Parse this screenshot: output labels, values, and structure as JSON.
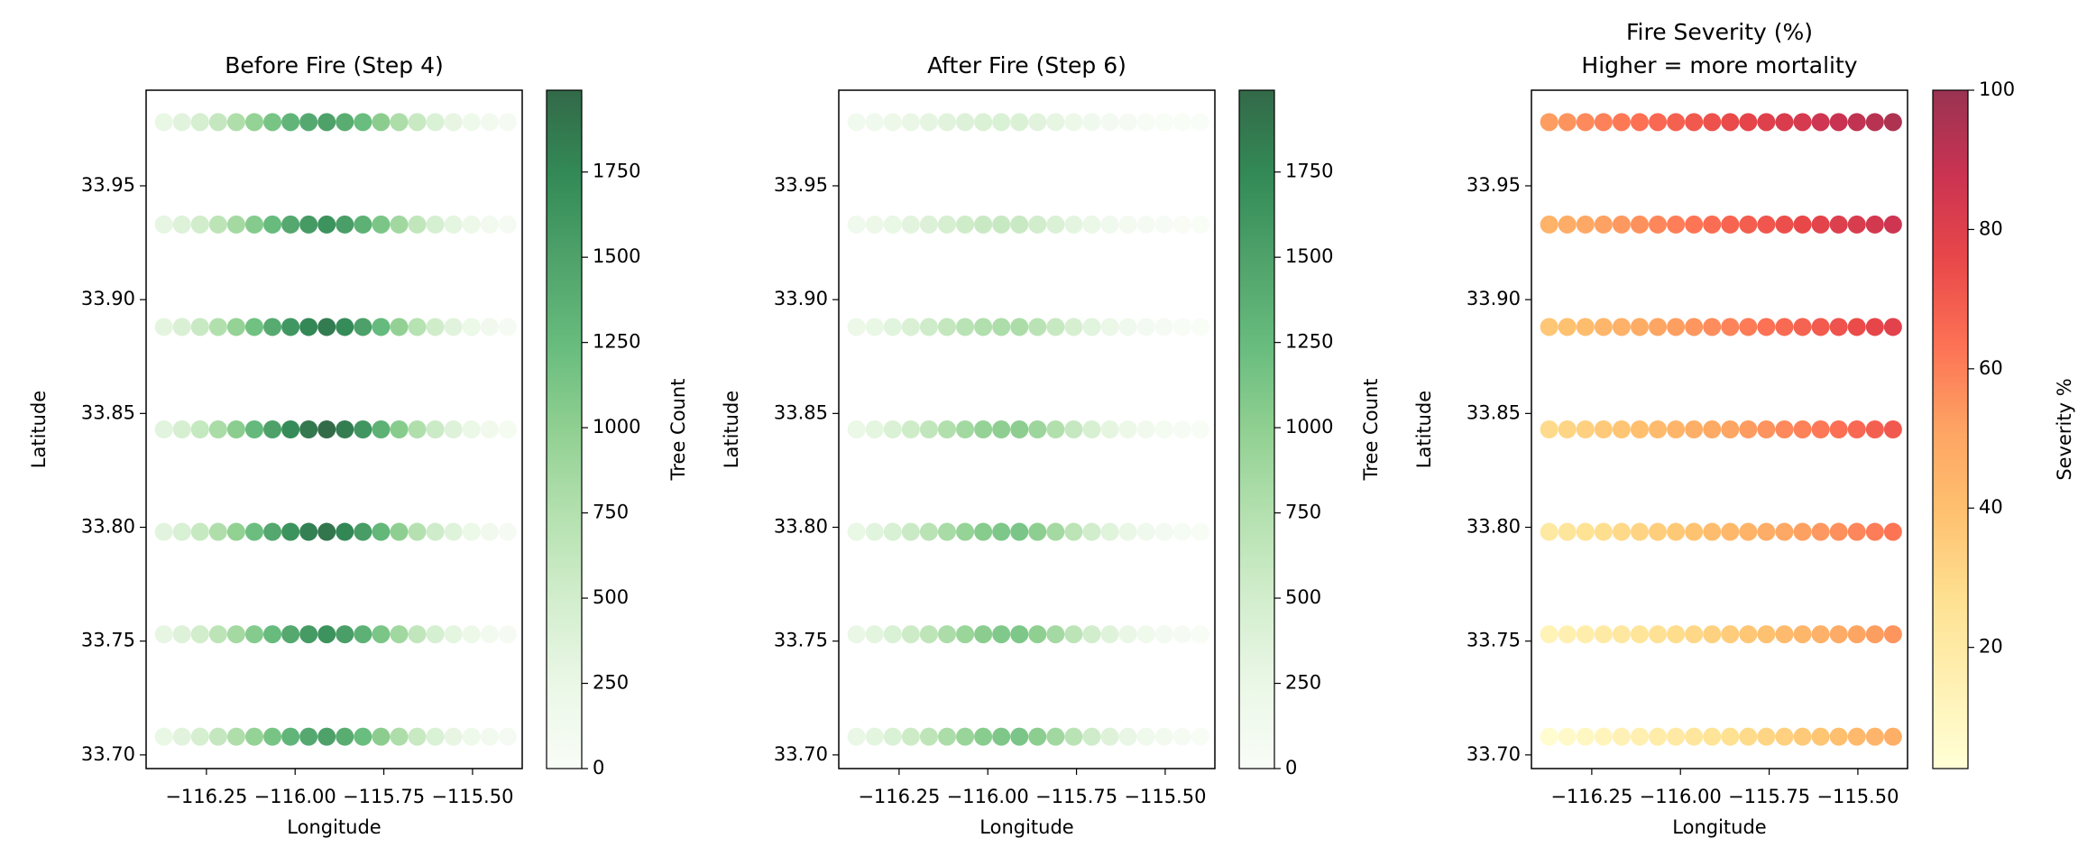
{
  "chart_data": [
    {
      "type": "scatter",
      "title": "Before Fire (Step 4)",
      "xlabel": "Longitude",
      "ylabel": "Latitude",
      "x": [
        -116.37,
        -116.319,
        -116.268,
        -116.217,
        -116.166,
        -116.115,
        -116.064,
        -116.013,
        -115.962,
        -115.911,
        -115.86,
        -115.809,
        -115.758,
        -115.707,
        -115.656,
        -115.605,
        -115.554,
        -115.503,
        -115.452,
        -115.401
      ],
      "rows": [
        {
          "y": 33.708,
          "values": [
            255,
            345,
            465,
            615,
            780,
            960,
            1140,
            1305,
            1425,
            1500,
            1395,
            1230,
            1020,
            795,
            585,
            420,
            285,
            180,
            105,
            60
          ]
        },
        {
          "y": 33.753,
          "values": [
            281,
            380,
            512,
            677,
            858,
            1056,
            1254,
            1436,
            1568,
            1650,
            1535,
            1353,
            1122,
            875,
            644,
            462,
            314,
            198,
            116,
            66
          ]
        },
        {
          "y": 33.798,
          "values": [
            323,
            437,
            589,
            779,
            988,
            1216,
            1444,
            1653,
            1805,
            1900,
            1767,
            1558,
            1292,
            1007,
            741,
            532,
            361,
            228,
            133,
            76
          ]
        },
        {
          "y": 33.843,
          "values": [
            337,
            455,
            614,
            812,
            1030,
            1267,
            1505,
            1723,
            1881,
            1980,
            1841,
            1624,
            1346,
            1049,
            772,
            554,
            376,
            238,
            139,
            79
          ]
        },
        {
          "y": 33.888,
          "values": [
            315,
            426,
            574,
            759,
            962,
            1184,
            1406,
            1610,
            1758,
            1850,
            1721,
            1517,
            1258,
            981,
            722,
            518,
            352,
            222,
            130,
            74
          ]
        },
        {
          "y": 33.933,
          "values": [
            281,
            380,
            512,
            677,
            858,
            1056,
            1254,
            1436,
            1568,
            1650,
            1535,
            1353,
            1122,
            875,
            644,
            462,
            314,
            198,
            116,
            66
          ]
        },
        {
          "y": 33.978,
          "values": [
            255,
            345,
            465,
            615,
            780,
            960,
            1140,
            1305,
            1425,
            1500,
            1395,
            1230,
            1020,
            795,
            585,
            420,
            285,
            180,
            105,
            60
          ]
        }
      ],
      "xlim": [
        -116.42,
        -115.36
      ],
      "ylim": [
        33.694,
        33.992
      ],
      "xticks": [
        {
          "value": -116.25,
          "label": "−116.25"
        },
        {
          "value": -116.0,
          "label": "−116.00"
        },
        {
          "value": -115.75,
          "label": "−115.75"
        },
        {
          "value": -115.5,
          "label": "−115.50"
        }
      ],
      "yticks": [
        {
          "value": 33.7,
          "label": "33.70"
        },
        33.75,
        {
          "value": 33.8,
          "label": "33.80"
        },
        33.85,
        {
          "value": 33.9,
          "label": "33.90"
        },
        33.95
      ],
      "colorbar": {
        "label": "Tree Count",
        "clim": [
          0,
          1990
        ],
        "ticks": [
          0,
          250,
          500,
          750,
          1000,
          1250,
          1500,
          1750
        ],
        "colormap": [
          "#f7fcf5",
          "#e5f5e0",
          "#c7e9c0",
          "#a1d99b",
          "#74c476",
          "#41ab5d",
          "#238b45",
          "#006d2c",
          "#00441b"
        ],
        "alpha": 0.8
      }
    },
    {
      "type": "scatter",
      "title": "After Fire (Step 6)",
      "xlabel": "Longitude",
      "ylabel": "Latitude",
      "x": [
        -116.37,
        -116.319,
        -116.268,
        -116.217,
        -116.166,
        -116.115,
        -116.064,
        -116.013,
        -115.962,
        -115.911,
        -115.86,
        -115.809,
        -115.758,
        -115.707,
        -115.656,
        -115.605,
        -115.554,
        -115.503,
        -115.452,
        -115.401
      ],
      "rows": [
        {
          "y": 33.708,
          "values": [
            242,
            320,
            421,
            544,
            672,
            806,
            933,
            1039,
            1103,
            1128,
            1018,
            871,
            700,
            528,
            376,
            260,
            170,
            104,
            58,
            32
          ]
        },
        {
          "y": 33.753,
          "values": [
            244,
            322,
            423,
            544,
            671,
            803,
            925,
            1028,
            1088,
            1109,
            998,
            850,
            680,
            511,
            362,
            249,
            163,
            98,
            55,
            30
          ]
        },
        {
          "y": 33.798,
          "values": [
            255,
            336,
            439,
            564,
            694,
            827,
            950,
            1051,
            1108,
            1125,
            1007,
            854,
            680,
            508,
            357,
            245,
            158,
            95,
            52,
            28
          ]
        },
        {
          "y": 33.843,
          "values": [
            239,
            313,
            409,
            523,
            641,
            760,
            870,
            958,
            1004,
            1014,
            902,
            760,
            600,
            445,
            310,
            211,
            135,
            80,
            44,
            23
          ]
        },
        {
          "y": 33.888,
          "values": [
            198,
            259,
            336,
            428,
            521,
            616,
            700,
            766,
            798,
            799,
            706,
            589,
            460,
            337,
            232,
            155,
            98,
            57,
            30,
            16
          ]
        },
        {
          "y": 33.933,
          "values": [
            155,
            201,
            259,
            328,
            396,
            465,
            524,
            569,
            586,
            581,
            507,
            417,
            321,
            231,
            156,
            102,
            62,
            35,
            18,
            9
          ]
        },
        {
          "y": 33.978,
          "values": [
            120,
            155,
            198,
            248,
            298,
            346,
            385,
            412,
            419,
            408,
            349,
            280,
            210,
            146,
            95,
            59,
            34,
            17,
            8,
            3
          ]
        }
      ],
      "xlim": [
        -116.42,
        -115.36
      ],
      "ylim": [
        33.694,
        33.992
      ],
      "xticks": [
        {
          "value": -116.25,
          "label": "−116.25"
        },
        {
          "value": -116.0,
          "label": "−116.00"
        },
        {
          "value": -115.75,
          "label": "−115.75"
        },
        {
          "value": -115.5,
          "label": "−115.50"
        }
      ],
      "yticks": [
        {
          "value": 33.7,
          "label": "33.70"
        },
        33.75,
        {
          "value": 33.8,
          "label": "33.80"
        },
        33.85,
        {
          "value": 33.9,
          "label": "33.90"
        },
        33.95
      ],
      "colorbar": {
        "label": "Tree Count",
        "clim": [
          0,
          1990
        ],
        "ticks": [
          0,
          250,
          500,
          750,
          1000,
          1250,
          1500,
          1750
        ],
        "colormap": [
          "#f7fcf5",
          "#e5f5e0",
          "#c7e9c0",
          "#a1d99b",
          "#74c476",
          "#41ab5d",
          "#238b45",
          "#006d2c",
          "#00441b"
        ],
        "alpha": 0.8
      }
    },
    {
      "type": "scatter",
      "title": "Fire Severity (%)",
      "subtitle": "Higher = more mortality",
      "xlabel": "Longitude",
      "ylabel": "Latitude",
      "x": [
        -116.37,
        -116.319,
        -116.268,
        -116.217,
        -116.166,
        -116.115,
        -116.064,
        -116.013,
        -115.962,
        -115.911,
        -115.86,
        -115.809,
        -115.758,
        -115.707,
        -115.656,
        -115.605,
        -115.554,
        -115.503,
        -115.452,
        -115.401
      ],
      "rows": [
        {
          "y": 33.708,
          "values": [
            5,
            7.2,
            9.4,
            11.6,
            13.8,
            16,
            18.2,
            20.4,
            22.6,
            24.8,
            27,
            29.2,
            31.4,
            33.6,
            35.8,
            38,
            40.2,
            42.4,
            44.6,
            46.8
          ]
        },
        {
          "y": 33.753,
          "values": [
            13,
            15.2,
            17.4,
            19.6,
            21.8,
            24,
            26.2,
            28.4,
            30.6,
            32.8,
            35,
            37.2,
            39.4,
            41.6,
            43.8,
            46,
            48.2,
            50.4,
            52.6,
            54.8
          ]
        },
        {
          "y": 33.798,
          "values": [
            21,
            23.2,
            25.4,
            27.6,
            29.8,
            32,
            34.2,
            36.4,
            38.6,
            40.8,
            43,
            45.2,
            47.4,
            49.6,
            51.8,
            54,
            56.2,
            58.4,
            60.6,
            62.8
          ]
        },
        {
          "y": 33.843,
          "values": [
            29,
            31.2,
            33.4,
            35.6,
            37.8,
            40,
            42.2,
            44.4,
            46.6,
            48.8,
            51,
            53.2,
            55.4,
            57.6,
            59.8,
            62,
            64.2,
            66.4,
            68.6,
            70.8
          ]
        },
        {
          "y": 33.888,
          "values": [
            37,
            39.2,
            41.4,
            43.6,
            45.8,
            48,
            50.2,
            52.4,
            54.6,
            56.8,
            59,
            61.2,
            63.4,
            65.6,
            67.8,
            70,
            72.2,
            74.4,
            76.6,
            78.8
          ]
        },
        {
          "y": 33.933,
          "values": [
            45,
            47.2,
            49.4,
            51.6,
            53.8,
            56,
            58.2,
            60.4,
            62.6,
            64.8,
            67,
            69.2,
            71.4,
            73.6,
            75.8,
            78,
            80.2,
            82.4,
            84.6,
            86.8
          ]
        },
        {
          "y": 33.978,
          "values": [
            53,
            55.2,
            57.4,
            59.6,
            61.8,
            64,
            66.2,
            68.4,
            70.6,
            72.8,
            75,
            77.2,
            79.4,
            81.6,
            83.8,
            86,
            88.2,
            90.4,
            92.6,
            94.8
          ]
        }
      ],
      "xlim": [
        -116.42,
        -115.36
      ],
      "ylim": [
        33.694,
        33.992
      ],
      "xticks": [
        {
          "value": -116.25,
          "label": "−116.25"
        },
        {
          "value": -116.0,
          "label": "−116.00"
        },
        {
          "value": -115.75,
          "label": "−115.75"
        },
        {
          "value": -115.5,
          "label": "−115.50"
        }
      ],
      "yticks": [
        {
          "value": 33.7,
          "label": "33.70"
        },
        33.75,
        {
          "value": 33.8,
          "label": "33.80"
        },
        33.85,
        {
          "value": 33.9,
          "label": "33.90"
        },
        33.95
      ],
      "colorbar": {
        "label": "Severity %",
        "clim": [
          2.6,
          100
        ],
        "ticks": [
          20,
          40,
          60,
          80,
          100
        ],
        "colormap": [
          "#ffffcc",
          "#ffeda0",
          "#fed976",
          "#feb24c",
          "#fd8d3c",
          "#fc4e2a",
          "#e31a1c",
          "#bd0026",
          "#800026"
        ],
        "alpha": 0.8
      }
    }
  ]
}
